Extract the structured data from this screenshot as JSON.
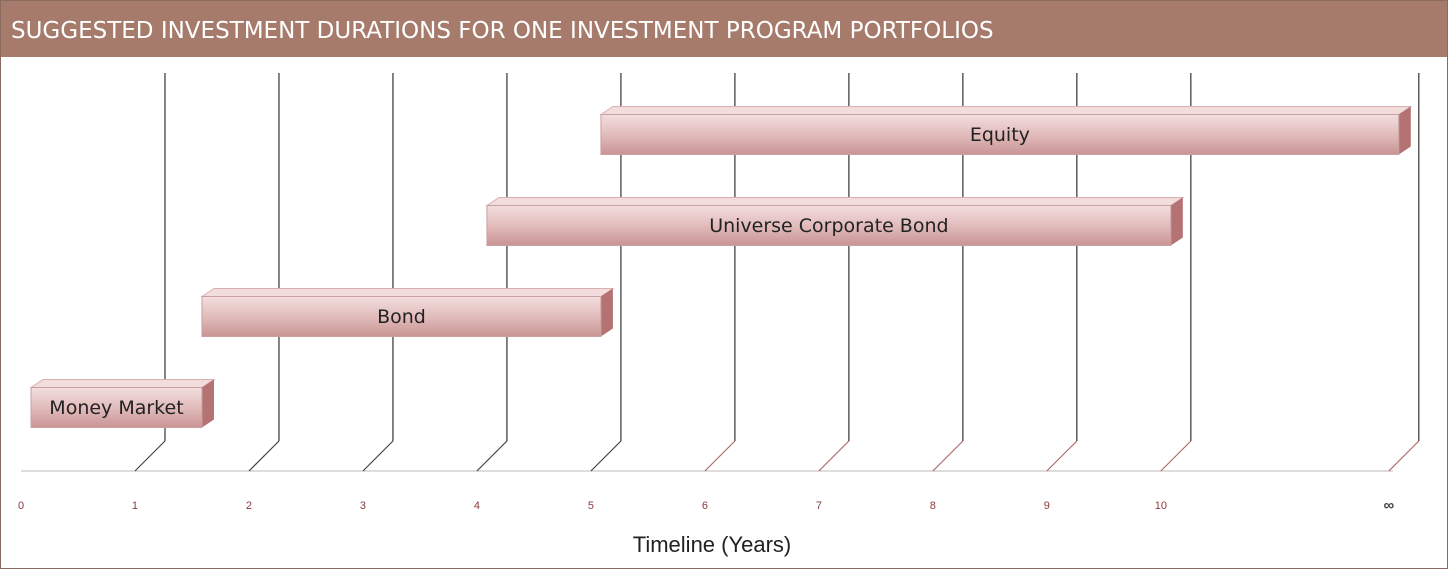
{
  "chart_data": {
    "type": "floating-bar",
    "title": "SUGGESTED INVESTMENT DURATIONS FOR ONE INVESTMENT PROGRAM PORTFOLIOS",
    "x_label": "Timeline (Years)",
    "categories": [
      "Money Market",
      "Bond",
      "Universe Corporate Bond",
      "Equity"
    ],
    "start": [
      0,
      1.5,
      4,
      5
    ],
    "end": [
      1.5,
      5,
      10,
      12
    ],
    "color": "#e2bcbc",
    "xlim": [
      0,
      12.3
    ],
    "xticks": [
      0,
      1,
      2,
      3,
      4,
      5,
      6,
      7,
      8,
      9,
      10,
      {
        "value": 12,
        "label": "∞"
      }
    ],
    "grid": true
  }
}
